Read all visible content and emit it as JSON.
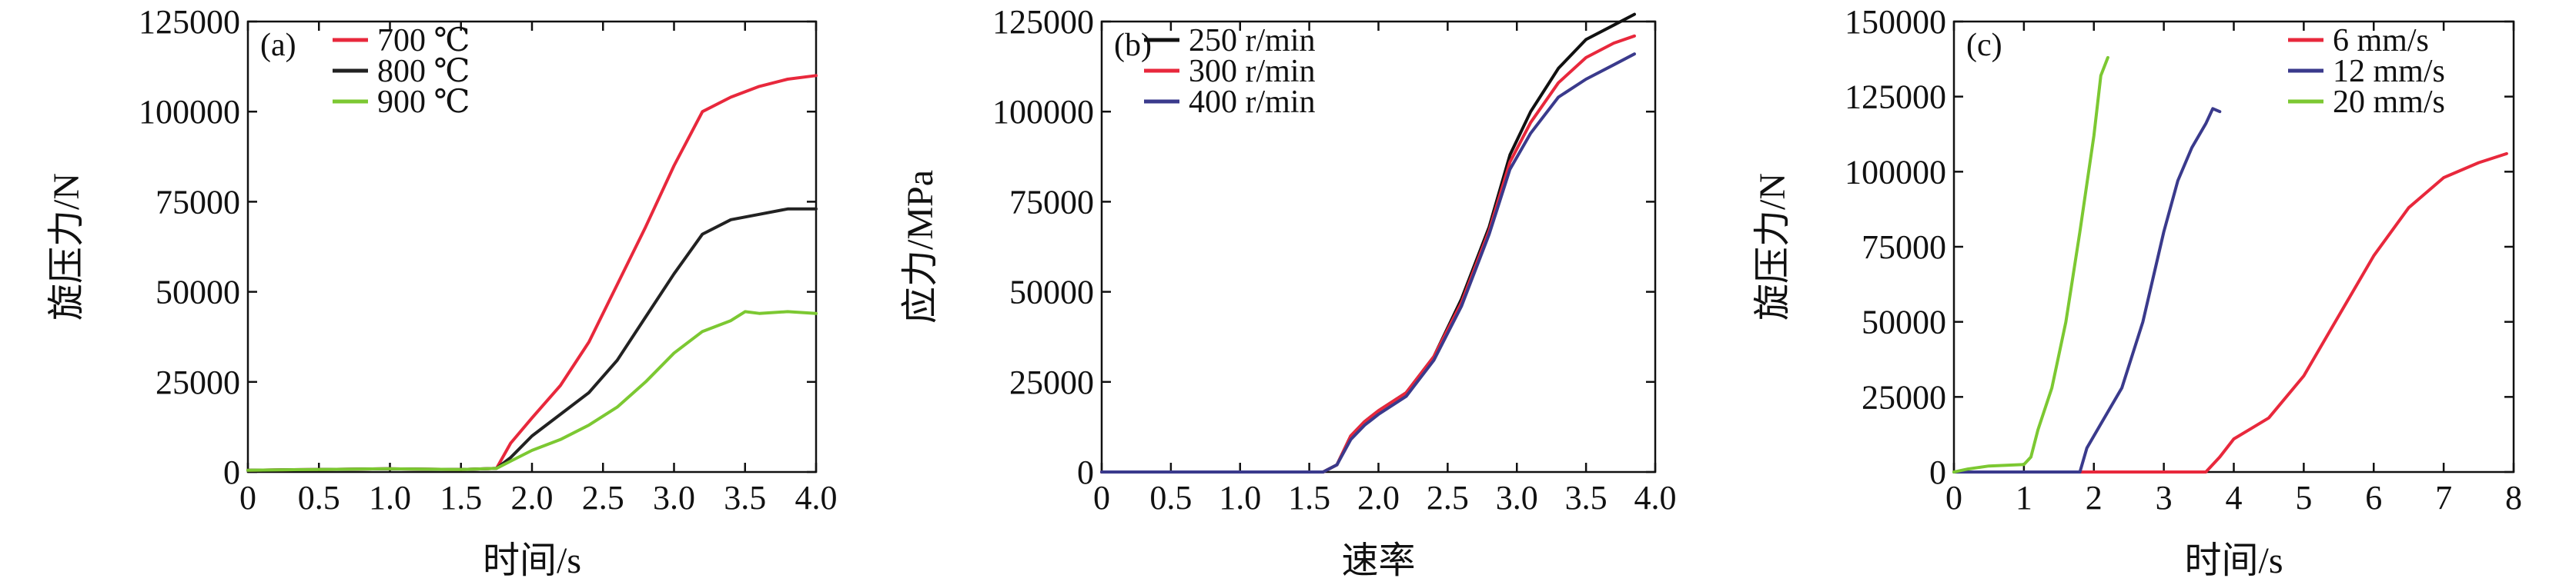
{
  "colors": {
    "red": "#e8283c",
    "dark": "#222222",
    "green": "#7cc832",
    "navy": "#3a3a8c",
    "black": "#111111"
  },
  "chart_data": [
    {
      "type": "line",
      "panel_tag": "(a)",
      "xlabel": "时间/s",
      "ylabel": "旋压力/N",
      "xlim": [
        0,
        4.0
      ],
      "ylim": [
        0,
        125000
      ],
      "xticks": [
        0,
        0.5,
        1.0,
        1.5,
        2.0,
        2.5,
        3.0,
        3.5,
        4.0
      ],
      "xtick_labels": [
        "0",
        "0.5",
        "1.0",
        "1.5",
        "2.0",
        "2.5",
        "3.0",
        "3.5",
        "4.0"
      ],
      "yticks": [
        0,
        25000,
        50000,
        75000,
        100000,
        125000
      ],
      "ytick_labels": [
        "0",
        "25000",
        "50000",
        "75000",
        "100000",
        "125000"
      ],
      "legend_position": "top-left",
      "grid": false,
      "series": [
        {
          "name": "700 ℃",
          "color": "#e8283c",
          "x": [
            0,
            0.5,
            1.0,
            1.5,
            1.75,
            1.85,
            2.0,
            2.2,
            2.4,
            2.6,
            2.8,
            3.0,
            3.2,
            3.4,
            3.6,
            3.8,
            4.0
          ],
          "y": [
            500,
            700,
            900,
            700,
            1000,
            8000,
            15000,
            24000,
            36000,
            52000,
            68000,
            85000,
            100000,
            104000,
            107000,
            109000,
            110000
          ]
        },
        {
          "name": "800 ℃",
          "color": "#222222",
          "x": [
            0,
            0.5,
            1.0,
            1.5,
            1.75,
            1.85,
            2.0,
            2.2,
            2.4,
            2.6,
            2.8,
            3.0,
            3.2,
            3.4,
            3.6,
            3.8,
            4.0
          ],
          "y": [
            500,
            700,
            900,
            700,
            1000,
            4000,
            10000,
            16000,
            22000,
            31000,
            43000,
            55000,
            66000,
            70000,
            71500,
            73000,
            73000
          ]
        },
        {
          "name": "900 ℃",
          "color": "#7cc832",
          "x": [
            0,
            0.5,
            1.0,
            1.5,
            1.75,
            1.85,
            2.0,
            2.2,
            2.4,
            2.6,
            2.8,
            3.0,
            3.2,
            3.4,
            3.5,
            3.6,
            3.8,
            4.0
          ],
          "y": [
            500,
            700,
            900,
            700,
            1000,
            3000,
            6000,
            9000,
            13000,
            18000,
            25000,
            33000,
            39000,
            42000,
            44500,
            44000,
            44500,
            44000
          ]
        }
      ]
    },
    {
      "type": "line",
      "panel_tag": "(b)",
      "xlabel": "速率",
      "ylabel": "应力/MPa",
      "xlim": [
        0,
        4.0
      ],
      "ylim": [
        0,
        125000
      ],
      "xticks": [
        0,
        0.5,
        1.0,
        1.5,
        2.0,
        2.5,
        3.0,
        3.5,
        4.0
      ],
      "xtick_labels": [
        "0",
        "0.5",
        "1.0",
        "1.5",
        "2.0",
        "2.5",
        "3.0",
        "3.5",
        "4.0"
      ],
      "yticks": [
        0,
        25000,
        50000,
        75000,
        100000,
        125000
      ],
      "ytick_labels": [
        "0",
        "25000",
        "50000",
        "75000",
        "100000",
        "125000"
      ],
      "legend_position": "top-left",
      "grid": false,
      "series": [
        {
          "name": "250 r/min",
          "color": "#111111",
          "x": [
            0,
            0.5,
            1.0,
            1.6,
            1.7,
            1.8,
            1.9,
            2.0,
            2.2,
            2.4,
            2.6,
            2.8,
            2.95,
            3.1,
            3.3,
            3.5,
            3.7,
            3.85
          ],
          "y": [
            0,
            0,
            0,
            0,
            2000,
            10000,
            14000,
            17000,
            22000,
            32000,
            48000,
            68000,
            88000,
            100000,
            112000,
            120000,
            124000,
            127000
          ]
        },
        {
          "name": "300 r/min",
          "color": "#e8283c",
          "x": [
            0,
            0.5,
            1.0,
            1.6,
            1.7,
            1.8,
            1.9,
            2.0,
            2.2,
            2.4,
            2.6,
            2.8,
            2.95,
            3.1,
            3.3,
            3.5,
            3.7,
            3.85
          ],
          "y": [
            0,
            0,
            0,
            0,
            2000,
            10000,
            14000,
            17000,
            22000,
            32000,
            47000,
            67000,
            86000,
            97000,
            108000,
            115000,
            119000,
            121000
          ]
        },
        {
          "name": "400 r/min",
          "color": "#3a3a8c",
          "x": [
            0,
            0.5,
            1.0,
            1.6,
            1.7,
            1.8,
            1.9,
            2.0,
            2.2,
            2.4,
            2.6,
            2.8,
            2.95,
            3.1,
            3.3,
            3.5,
            3.7,
            3.85
          ],
          "y": [
            0,
            0,
            0,
            0,
            2000,
            9000,
            13000,
            16000,
            21000,
            31000,
            46000,
            66000,
            84000,
            94000,
            104000,
            109000,
            113000,
            116000
          ]
        }
      ]
    },
    {
      "type": "line",
      "panel_tag": "(c)",
      "xlabel": "时间/s",
      "ylabel": "旋压力/N",
      "xlim": [
        0,
        8
      ],
      "ylim": [
        0,
        150000
      ],
      "xticks": [
        0,
        1,
        2,
        3,
        4,
        5,
        6,
        7,
        8
      ],
      "xtick_labels": [
        "0",
        "1",
        "2",
        "3",
        "4",
        "5",
        "6",
        "7",
        "8"
      ],
      "yticks": [
        0,
        25000,
        50000,
        75000,
        100000,
        125000,
        150000
      ],
      "ytick_labels": [
        "0",
        "25000",
        "50000",
        "75000",
        "100000",
        "125000",
        "150000"
      ],
      "legend_position": "top-right",
      "grid": false,
      "series": [
        {
          "name": "6 mm/s",
          "color": "#e8283c",
          "x": [
            0,
            1,
            2,
            3,
            3.6,
            3.8,
            4.0,
            4.5,
            5.0,
            5.5,
            6.0,
            6.5,
            7.0,
            7.5,
            7.9
          ],
          "y": [
            0,
            0,
            0,
            0,
            0,
            5000,
            11000,
            18000,
            32000,
            52000,
            72000,
            88000,
            98000,
            103000,
            106000
          ]
        },
        {
          "name": "12 mm/s",
          "color": "#3a3a8c",
          "x": [
            0,
            0.5,
            1.0,
            1.5,
            1.8,
            1.9,
            2.1,
            2.4,
            2.7,
            3.0,
            3.2,
            3.4,
            3.6,
            3.7,
            3.8
          ],
          "y": [
            0,
            0,
            0,
            0,
            0,
            8000,
            16000,
            28000,
            50000,
            80000,
            97000,
            108000,
            116000,
            121000,
            120000
          ]
        },
        {
          "name": "20 mm/s",
          "color": "#7cc832",
          "x": [
            0,
            0.2,
            0.5,
            1.0,
            1.1,
            1.2,
            1.4,
            1.6,
            1.8,
            2.0,
            2.1,
            2.2
          ],
          "y": [
            0,
            1000,
            2000,
            2500,
            5000,
            14000,
            28000,
            50000,
            80000,
            112000,
            132000,
            138000
          ]
        }
      ]
    }
  ]
}
